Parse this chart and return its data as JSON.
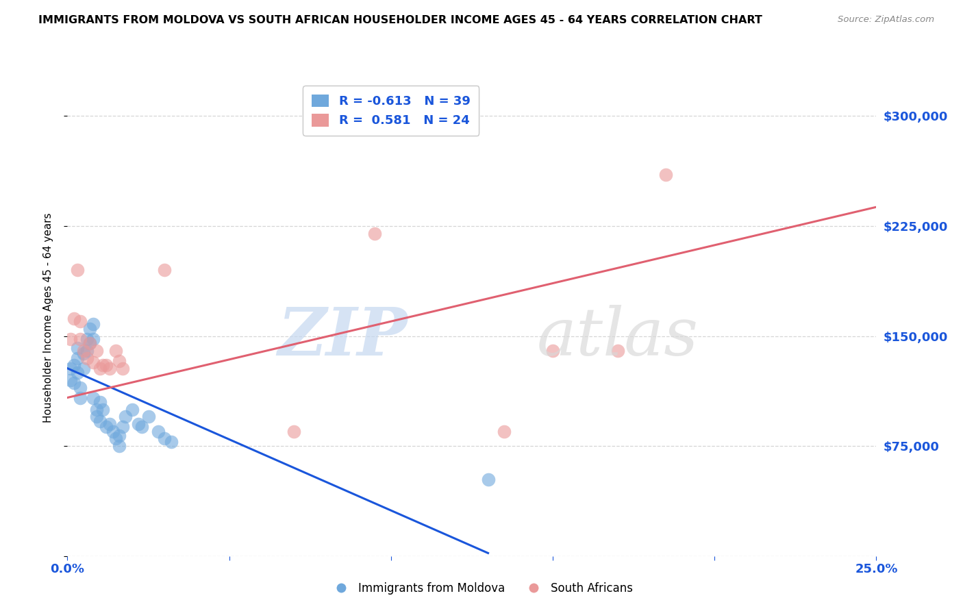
{
  "title": "IMMIGRANTS FROM MOLDOVA VS SOUTH AFRICAN HOUSEHOLDER INCOME AGES 45 - 64 YEARS CORRELATION CHART",
  "source": "Source: ZipAtlas.com",
  "ylabel": "Householder Income Ages 45 - 64 years",
  "xmin": 0.0,
  "xmax": 0.25,
  "ymin": 0,
  "ymax": 325000,
  "yticks": [
    0,
    75000,
    150000,
    225000,
    300000
  ],
  "ytick_labels": [
    "",
    "$75,000",
    "$150,000",
    "$225,000",
    "$300,000"
  ],
  "xticks": [
    0.0,
    0.05,
    0.1,
    0.15,
    0.2,
    0.25
  ],
  "xtick_labels": [
    "0.0%",
    "",
    "",
    "",
    "",
    "25.0%"
  ],
  "blue_R": -0.613,
  "blue_N": 39,
  "pink_R": 0.581,
  "pink_N": 24,
  "blue_color": "#6fa8dc",
  "pink_color": "#ea9999",
  "blue_line_color": "#1a56db",
  "pink_line_color": "#e06070",
  "legend_label_blue": "Immigrants from Moldova",
  "legend_label_pink": "South Africans",
  "blue_scatter_x": [
    0.001,
    0.001,
    0.002,
    0.002,
    0.003,
    0.003,
    0.003,
    0.004,
    0.004,
    0.005,
    0.005,
    0.006,
    0.006,
    0.007,
    0.007,
    0.008,
    0.008,
    0.008,
    0.009,
    0.009,
    0.01,
    0.01,
    0.011,
    0.012,
    0.013,
    0.014,
    0.015,
    0.016,
    0.016,
    0.017,
    0.018,
    0.02,
    0.022,
    0.023,
    0.025,
    0.028,
    0.03,
    0.032,
    0.13
  ],
  "blue_scatter_y": [
    128000,
    120000,
    130000,
    118000,
    142000,
    135000,
    125000,
    115000,
    108000,
    138000,
    128000,
    148000,
    140000,
    155000,
    145000,
    158000,
    148000,
    108000,
    100000,
    95000,
    105000,
    92000,
    100000,
    88000,
    90000,
    85000,
    80000,
    75000,
    82000,
    88000,
    95000,
    100000,
    90000,
    88000,
    95000,
    85000,
    80000,
    78000,
    52000
  ],
  "pink_scatter_x": [
    0.001,
    0.002,
    0.003,
    0.004,
    0.004,
    0.005,
    0.006,
    0.007,
    0.008,
    0.009,
    0.01,
    0.011,
    0.012,
    0.013,
    0.015,
    0.016,
    0.017,
    0.03,
    0.07,
    0.095,
    0.135,
    0.15,
    0.17,
    0.185
  ],
  "pink_scatter_y": [
    148000,
    162000,
    195000,
    160000,
    148000,
    140000,
    135000,
    145000,
    132000,
    140000,
    128000,
    130000,
    130000,
    128000,
    140000,
    133000,
    128000,
    195000,
    85000,
    220000,
    85000,
    140000,
    140000,
    260000
  ],
  "blue_trend_x": [
    0.0,
    0.13
  ],
  "blue_trend_y": [
    128000,
    2000
  ],
  "pink_trend_x": [
    0.0,
    0.25
  ],
  "pink_trend_y": [
    108000,
    238000
  ]
}
